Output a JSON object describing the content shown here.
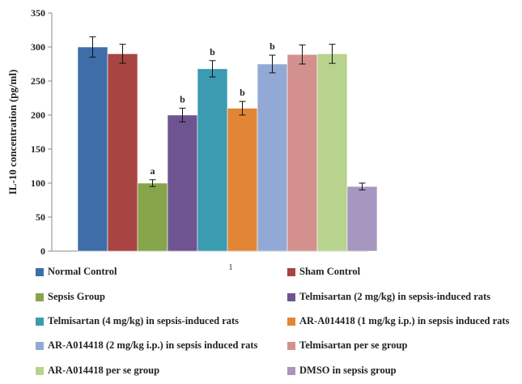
{
  "chart_data": {
    "type": "bar",
    "categories": [
      "1"
    ],
    "ylabel": "IL-10 concentration (pg/ml)",
    "ylim": [
      0,
      350
    ],
    "yticks": [
      0,
      50,
      100,
      150,
      200,
      250,
      300,
      350
    ],
    "grid": false,
    "legend_position": "bottom",
    "series": [
      {
        "name": "Normal Control",
        "value": 300,
        "error": 15,
        "color": "#3E6DA8",
        "annotation": ""
      },
      {
        "name": "Sham Control",
        "value": 290,
        "error": 14,
        "color": "#A84442",
        "annotation": ""
      },
      {
        "name": "Sepsis Group",
        "value": 100,
        "error": 5,
        "color": "#87A54B",
        "annotation": "a"
      },
      {
        "name": "Telmisartan (2 mg/kg) in sepsis-induced rats",
        "value": 200,
        "error": 10,
        "color": "#6E5490",
        "annotation": "b"
      },
      {
        "name": "Telmisartan (4 mg/kg) in sepsis-induced rats",
        "value": 268,
        "error": 12,
        "color": "#3B9BB0",
        "annotation": "b"
      },
      {
        "name": "AR-A014418 (1 mg/kg i.p.) in sepsis induced rats",
        "value": 210,
        "error": 10,
        "color": "#E28636",
        "annotation": "b"
      },
      {
        "name": "AR-A014418 (2 mg/kg i.p.) in sepsis induced rats",
        "value": 275,
        "error": 13,
        "color": "#93A9D5",
        "annotation": "b"
      },
      {
        "name": "Telmisartan per se group",
        "value": 289,
        "error": 14,
        "color": "#D4908F",
        "annotation": ""
      },
      {
        "name": "AR-A014418  per se group",
        "value": 290,
        "error": 14,
        "color": "#B7D38D",
        "annotation": ""
      },
      {
        "name": "DMSO in sepsis group",
        "value": 95,
        "error": 5,
        "color": "#A796BF",
        "annotation": ""
      }
    ]
  }
}
